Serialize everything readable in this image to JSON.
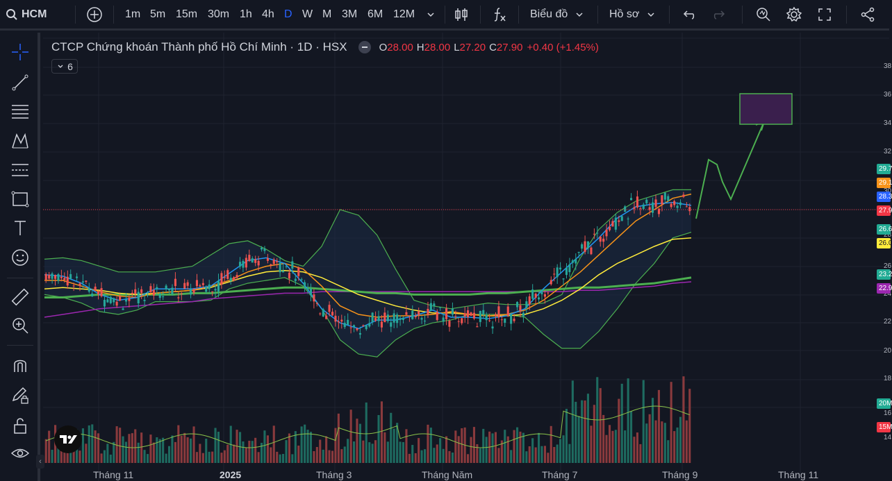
{
  "symbol": "HCM",
  "toolbar": {
    "intervals": [
      "1m",
      "5m",
      "15m",
      "30m",
      "1h",
      "4h",
      "D",
      "W",
      "M",
      "3M",
      "6M",
      "12M"
    ],
    "active_interval": "D",
    "chart_menu": "Biểu đồ",
    "profile_menu": "Hồ sơ"
  },
  "legend": {
    "title": "CTCP Chứng khoán Thành phố Hồ Chí Minh · 1D · HSX",
    "o_label": "O",
    "o": "28.00",
    "h_label": "H",
    "h": "28.00",
    "l_label": "L",
    "l": "27.20",
    "c_label": "C",
    "c": "27.90",
    "change": "+0.40 (+1.45%)",
    "indicator_count": "6"
  },
  "x_axis": [
    "Tháng 11",
    "2025",
    "Tháng 3",
    "Tháng Năm",
    "Tháng 7",
    "Tháng 9",
    "Tháng 11"
  ],
  "price_axis": [
    "38",
    "36",
    "34",
    "32",
    "30",
    "28",
    "26",
    "24",
    "22",
    "20",
    "18",
    "16",
    "14"
  ],
  "price_labels": [
    {
      "text": "29.7",
      "color": "#22ab94"
    },
    {
      "text": "29.1",
      "color": "#f7931a"
    },
    {
      "text": "28.3",
      "color": "#2962ff"
    },
    {
      "text": "27.9",
      "color": "#f23645"
    },
    {
      "text": "26.6",
      "color": "#22ab94"
    },
    {
      "text": "26.0",
      "color": "#ffeb3b"
    },
    {
      "text": "23.2",
      "color": "#22ab94"
    },
    {
      "text": "22.9",
      "color": "#9c27b0"
    },
    {
      "text": "20M",
      "color": "#22ab94"
    },
    {
      "text": "15M",
      "color": "#f23645"
    }
  ],
  "colors": {
    "up": "#26a69a",
    "down": "#ef5350",
    "accent": "#2962ff",
    "background": "#131722"
  },
  "chart_data": {
    "type": "candlestick",
    "price_range": [
      14,
      38
    ],
    "last": {
      "open": 28.0,
      "high": 28.0,
      "low": 27.2,
      "close": 27.9
    },
    "bollinger_upper": [
      24.5,
      24.6,
      24.4,
      24.0,
      23.6,
      23.6,
      23.6,
      23.8,
      24.0,
      24.8,
      25.6,
      25.8,
      25.2,
      24.4,
      24.0,
      25.4,
      28.0,
      27.6,
      26.2,
      23.8,
      21.6,
      21.2,
      21.0,
      21.2,
      21.4,
      21.3,
      21.3,
      21.4,
      22.0,
      24.6,
      26.6,
      27.8,
      28.6,
      29.0,
      29.4,
      29.4
    ],
    "bollinger_lower": [
      22.0,
      21.8,
      21.4,
      20.8,
      20.6,
      20.9,
      21.5,
      21.5,
      21.5,
      21.6,
      22.4,
      22.8,
      23.0,
      23.2,
      22.6,
      21.0,
      18.8,
      17.8,
      17.6,
      18.8,
      19.6,
      20.0,
      20.2,
      20.6,
      20.6,
      20.6,
      20.4,
      19.2,
      18.2,
      18.2,
      19.4,
      21.0,
      22.8,
      24.2,
      26.0,
      26.4
    ],
    "ma_short": [
      23.4,
      23.3,
      22.8,
      22.0,
      21.6,
      21.8,
      22.4,
      22.4,
      22.4,
      22.6,
      23.5,
      24.4,
      24.6,
      24.2,
      22.8,
      21.0,
      20.0,
      19.6,
      20.2,
      20.2,
      20.5,
      20.9,
      20.4,
      20.4,
      20.3,
      20.5,
      21.0,
      22.4,
      23.6,
      24.8,
      26.0,
      27.4,
      28.2,
      28.4,
      28.5,
      28.3
    ],
    "ma_mid": [
      23.0,
      23.0,
      22.6,
      22.2,
      21.9,
      21.8,
      22.1,
      22.2,
      22.3,
      22.6,
      23.0,
      23.6,
      24.0,
      24.2,
      23.8,
      22.6,
      21.2,
      20.6,
      20.4,
      20.5,
      20.5,
      20.6,
      20.8,
      20.6,
      20.5,
      20.6,
      20.9,
      21.6,
      22.6,
      23.6,
      24.8,
      26.0,
      27.2,
      28.0,
      28.8,
      29.1
    ],
    "ma_long1": [
      22.4,
      22.5,
      22.4,
      22.3,
      22.1,
      22.0,
      22.1,
      22.2,
      22.3,
      22.5,
      22.9,
      23.3,
      23.6,
      23.7,
      23.6,
      23.2,
      22.6,
      22.0,
      21.6,
      21.2,
      20.9,
      20.7,
      20.7,
      20.6,
      20.5,
      20.5,
      20.6,
      21.0,
      21.6,
      22.4,
      23.4,
      24.2,
      24.8,
      25.4,
      25.9,
      26.0
    ],
    "ma_long2": [
      21.8,
      21.8,
      21.9,
      22.0,
      22.0,
      22.0,
      22.0,
      22.0,
      22.1,
      22.1,
      22.2,
      22.3,
      22.4,
      22.5,
      22.5,
      22.4,
      22.3,
      22.2,
      22.1,
      22.1,
      22.0,
      22.0,
      22.0,
      22.0,
      22.1,
      22.1,
      22.2,
      22.3,
      22.4,
      22.5,
      22.5,
      22.6,
      22.7,
      22.8,
      23.0,
      23.2
    ],
    "ma_long3": [
      20.4,
      20.6,
      20.8,
      21.0,
      21.1,
      21.2,
      21.3,
      21.4,
      21.5,
      21.7,
      21.8,
      21.9,
      22.0,
      22.1,
      22.1,
      22.2,
      22.2,
      22.2,
      22.2,
      22.2,
      22.2,
      22.2,
      22.2,
      22.2,
      22.2,
      22.2,
      22.2,
      22.2,
      22.2,
      22.3,
      22.3,
      22.4,
      22.5,
      22.6,
      22.8,
      22.9
    ],
    "volume_levels": [
      {
        "label": "20M"
      },
      {
        "label": "15M"
      }
    ],
    "drawing": {
      "type": "forecast-path",
      "target_box": [
        33.0,
        35.0
      ]
    }
  }
}
